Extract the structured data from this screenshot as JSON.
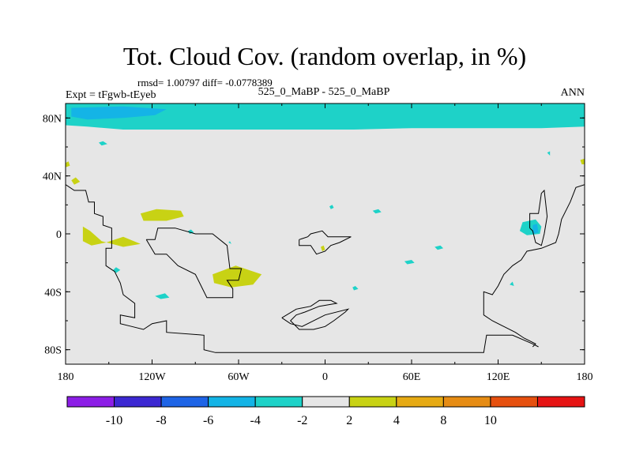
{
  "chart_data": {
    "type": "heatmap",
    "title": "Tot. Cloud Cov. (random overlap, in %)",
    "stats_line": "rmsd= 1.00797 diff= -0.0778389",
    "left_label": "Expt = tFgwb-tEyeb",
    "center_label": "525_0_MaBP - 525_0_MaBP",
    "right_label": "ANN",
    "x_axis": {
      "range": [
        -180,
        180
      ],
      "ticks": [
        {
          "value": -180,
          "label": "180"
        },
        {
          "value": -120,
          "label": "120W"
        },
        {
          "value": -60,
          "label": "60W"
        },
        {
          "value": 0,
          "label": "0"
        },
        {
          "value": 60,
          "label": "60E"
        },
        {
          "value": 120,
          "label": "120E"
        },
        {
          "value": 180,
          "label": "180"
        }
      ]
    },
    "y_axis": {
      "range": [
        -90,
        90
      ],
      "ticks": [
        {
          "value": 80,
          "label": "80N"
        },
        {
          "value": 40,
          "label": "40N"
        },
        {
          "value": 0,
          "label": "0"
        },
        {
          "value": -40,
          "label": "40S"
        },
        {
          "value": -80,
          "label": "80S"
        }
      ]
    },
    "colorbar": {
      "colors": [
        "#8c1ee6",
        "#3c28d2",
        "#1e64e6",
        "#14b4e6",
        "#1ed2c8",
        "#e6e6e6",
        "#c8d214",
        "#e6aa14",
        "#e68c14",
        "#e6500f",
        "#e61414"
      ],
      "labels": [
        "-10",
        "-8",
        "-6",
        "-4",
        "-2",
        "2",
        "4",
        "8",
        "10"
      ]
    },
    "anomaly_regions": [
      {
        "name": "arctic-band",
        "level": "-2",
        "color": "#1ed2c8",
        "points": [
          [
            -180,
            90
          ],
          [
            180,
            90
          ],
          [
            180,
            74
          ],
          [
            150,
            73
          ],
          [
            100,
            73
          ],
          [
            60,
            73
          ],
          [
            20,
            72
          ],
          [
            -20,
            72
          ],
          [
            -60,
            72
          ],
          [
            -100,
            72
          ],
          [
            -140,
            72
          ],
          [
            -165,
            74
          ],
          [
            -180,
            75
          ]
        ]
      },
      {
        "name": "arctic-core",
        "level": "-4",
        "color": "#14b4e6",
        "points": [
          [
            -176,
            87
          ],
          [
            -140,
            88
          ],
          [
            -110,
            86
          ],
          [
            -118,
            82
          ],
          [
            -140,
            80
          ],
          [
            -165,
            79
          ],
          [
            -176,
            81
          ]
        ]
      },
      {
        "name": "mid-pacific",
        "level": "2",
        "color": "#c8d214",
        "points": [
          [
            -128,
            14
          ],
          [
            -117,
            17
          ],
          [
            -100,
            16
          ],
          [
            -98,
            12
          ],
          [
            -110,
            9
          ],
          [
            -126,
            9
          ]
        ]
      },
      {
        "name": "equatorial-pacific-east",
        "level": "2",
        "color": "#c8d214",
        "points": [
          [
            -168,
            5
          ],
          [
            -163,
            2
          ],
          [
            -155,
            -5
          ],
          [
            -140,
            -9
          ],
          [
            -128,
            -7
          ],
          [
            -140,
            -2
          ],
          [
            -152,
            -6
          ],
          [
            -162,
            -8
          ],
          [
            -168,
            -5
          ]
        ]
      },
      {
        "name": "south-atlantic",
        "level": "2",
        "color": "#c8d214",
        "points": [
          [
            -78,
            -28
          ],
          [
            -62,
            -22
          ],
          [
            -44,
            -28
          ],
          [
            -50,
            -35
          ],
          [
            -65,
            -37
          ],
          [
            -77,
            -34
          ]
        ]
      },
      {
        "name": "west-pacific-cyan",
        "level": "-2",
        "color": "#1ed2c8",
        "points": [
          [
            137,
            8
          ],
          [
            146,
            10
          ],
          [
            150,
            5
          ],
          [
            149,
            0
          ],
          [
            140,
            -1
          ],
          [
            135,
            2
          ]
        ]
      },
      {
        "name": "west-pacific-blue",
        "level": "-4",
        "color": "#14b4e6",
        "points": [
          [
            144,
            6
          ],
          [
            147,
            7
          ],
          [
            148,
            1
          ],
          [
            144,
            0
          ]
        ]
      },
      {
        "name": "high-lat-nw",
        "level": "2",
        "color": "#c8d214",
        "points": [
          [
            -180,
            49
          ],
          [
            -178,
            50
          ],
          [
            -177,
            47
          ],
          [
            -180,
            46
          ]
        ]
      },
      {
        "name": "high-lat-ne",
        "level": "2",
        "color": "#c8d214",
        "points": [
          [
            180,
            52
          ],
          [
            177,
            51
          ],
          [
            178,
            48
          ],
          [
            180,
            48
          ]
        ]
      },
      {
        "name": "pacific-sw-dot",
        "level": "2",
        "color": "#c8d214",
        "points": [
          [
            -176,
            37
          ],
          [
            -173,
            39
          ],
          [
            -170,
            36
          ],
          [
            -174,
            34
          ]
        ]
      },
      {
        "name": "dot-1",
        "level": "-2",
        "color": "#1ed2c8",
        "points": [
          [
            -157,
            63
          ],
          [
            -154,
            64
          ],
          [
            -151,
            62
          ],
          [
            -155,
            61
          ]
        ]
      },
      {
        "name": "dot-2",
        "level": "-2",
        "color": "#1ed2c8",
        "points": [
          [
            -95,
            2
          ],
          [
            -93,
            3
          ],
          [
            -91,
            1
          ],
          [
            -94,
            0
          ]
        ]
      },
      {
        "name": "dot-3",
        "level": "-2",
        "color": "#1ed2c8",
        "points": [
          [
            -147,
            -25
          ],
          [
            -145,
            -23
          ],
          [
            -142,
            -25
          ],
          [
            -145,
            -27
          ]
        ]
      },
      {
        "name": "dot-4",
        "level": "-2",
        "color": "#1ed2c8",
        "points": [
          [
            -118,
            -43
          ],
          [
            -111,
            -41
          ],
          [
            -108,
            -44
          ],
          [
            -114,
            -45
          ]
        ]
      },
      {
        "name": "dot-5",
        "level": "-2",
        "color": "#1ed2c8",
        "points": [
          [
            -67,
            -6
          ],
          [
            -66,
            -5
          ],
          [
            -65,
            -7
          ]
        ]
      },
      {
        "name": "dot-6",
        "level": "-2",
        "color": "#1ed2c8",
        "points": [
          [
            3,
            19
          ],
          [
            5,
            20
          ],
          [
            6,
            18
          ],
          [
            4,
            17
          ]
        ]
      },
      {
        "name": "dot-7",
        "level": "-2",
        "color": "#1ed2c8",
        "points": [
          [
            33,
            16
          ],
          [
            37,
            17
          ],
          [
            39,
            15
          ],
          [
            35,
            14
          ]
        ]
      },
      {
        "name": "dot-8",
        "level": "-2",
        "color": "#1ed2c8",
        "points": [
          [
            55,
            -19
          ],
          [
            60,
            -18
          ],
          [
            62,
            -20
          ],
          [
            57,
            -21
          ]
        ]
      },
      {
        "name": "dot-9",
        "level": "-2",
        "color": "#1ed2c8",
        "points": [
          [
            76,
            -9
          ],
          [
            80,
            -8
          ],
          [
            82,
            -10
          ],
          [
            78,
            -11
          ]
        ]
      },
      {
        "name": "dot-10",
        "level": "-2",
        "color": "#1ed2c8",
        "points": [
          [
            19,
            -37
          ],
          [
            21,
            -36
          ],
          [
            23,
            -38
          ],
          [
            20,
            -39
          ]
        ]
      },
      {
        "name": "dot-11",
        "level": "-2",
        "color": "#1ed2c8",
        "points": [
          [
            128,
            -35
          ],
          [
            130,
            -33
          ],
          [
            131,
            -36
          ]
        ]
      },
      {
        "name": "dot-12",
        "level": "-2",
        "color": "#1ed2c8",
        "points": [
          [
            154,
            56
          ],
          [
            156,
            57
          ],
          [
            156,
            54
          ]
        ]
      },
      {
        "name": "dot-13",
        "level": "2",
        "color": "#c8d214",
        "points": [
          [
            -3,
            -9
          ],
          [
            -1,
            -8
          ],
          [
            0,
            -11
          ],
          [
            -2,
            -12
          ]
        ]
      }
    ],
    "coastlines": [
      {
        "name": "americas-west",
        "points": [
          [
            -180,
            34
          ],
          [
            -174,
            30
          ],
          [
            -166,
            30
          ],
          [
            -164,
            22
          ],
          [
            -160,
            22
          ],
          [
            -160,
            14
          ],
          [
            -154,
            12
          ],
          [
            -154,
            6
          ],
          [
            -148,
            4
          ],
          [
            -148,
            -10
          ],
          [
            -152,
            -10
          ],
          [
            -152,
            -22
          ],
          [
            -146,
            -26
          ],
          [
            -142,
            -34
          ],
          [
            -140,
            -42
          ],
          [
            -132,
            -48
          ],
          [
            -132,
            -58
          ],
          [
            -142,
            -56
          ],
          [
            -142,
            -62
          ],
          [
            -134,
            -64
          ],
          [
            -126,
            -66
          ],
          [
            -120,
            -62
          ],
          [
            -110,
            -60
          ],
          [
            -110,
            -68
          ],
          [
            -84,
            -70
          ],
          [
            -84,
            -80
          ],
          [
            -76,
            -82
          ],
          [
            -30,
            -82
          ],
          [
            20,
            -82
          ],
          [
            110,
            -82
          ],
          [
            112,
            -70
          ],
          [
            130,
            -70
          ],
          [
            144,
            -76
          ],
          [
            148,
            -78
          ]
        ]
      },
      {
        "name": "americas-inner",
        "points": [
          [
            -124,
            -4
          ],
          [
            -118,
            -4
          ],
          [
            -116,
            4
          ],
          [
            -104,
            4
          ],
          [
            -90,
            0
          ],
          [
            -78,
            0
          ],
          [
            -68,
            -8
          ],
          [
            -66,
            -24
          ],
          [
            -58,
            -24
          ],
          [
            -60,
            -32
          ],
          [
            -68,
            -32
          ],
          [
            -64,
            -38
          ],
          [
            -64,
            -44
          ],
          [
            -82,
            -44
          ],
          [
            -86,
            -36
          ],
          [
            -90,
            -28
          ],
          [
            -102,
            -22
          ],
          [
            -110,
            -14
          ],
          [
            -118,
            -14
          ],
          [
            -124,
            -4
          ]
        ]
      },
      {
        "name": "island-1",
        "points": [
          [
            -18,
            -4
          ],
          [
            -12,
            -2
          ],
          [
            -10,
            0
          ],
          [
            -2,
            2
          ],
          [
            2,
            -2
          ],
          [
            18,
            -2
          ],
          [
            10,
            -6
          ],
          [
            4,
            -8
          ],
          [
            0,
            -12
          ],
          [
            -6,
            -14
          ],
          [
            -10,
            -8
          ],
          [
            -18,
            -8
          ],
          [
            -18,
            -4
          ]
        ]
      },
      {
        "name": "island-2",
        "points": [
          [
            -30,
            -58
          ],
          [
            -20,
            -52
          ],
          [
            -10,
            -50
          ],
          [
            -4,
            -46
          ],
          [
            4,
            -46
          ],
          [
            8,
            -48
          ],
          [
            -4,
            -50
          ],
          [
            -14,
            -54
          ],
          [
            -20,
            -56
          ],
          [
            -24,
            -60
          ],
          [
            -18,
            -66
          ],
          [
            -8,
            -66
          ],
          [
            0,
            -64
          ],
          [
            6,
            -60
          ],
          [
            14,
            -54
          ],
          [
            16,
            -52
          ],
          [
            0,
            -56
          ],
          [
            -16,
            -64
          ],
          [
            -24,
            -62
          ],
          [
            -30,
            -58
          ]
        ]
      },
      {
        "name": "asia-east",
        "points": [
          [
            180,
            34
          ],
          [
            174,
            32
          ],
          [
            170,
            22
          ],
          [
            164,
            10
          ],
          [
            162,
            0
          ],
          [
            160,
            -6
          ],
          [
            150,
            -10
          ],
          [
            140,
            -12
          ],
          [
            136,
            -18
          ],
          [
            130,
            -22
          ],
          [
            124,
            -28
          ],
          [
            120,
            -36
          ],
          [
            116,
            -42
          ],
          [
            110,
            -40
          ],
          [
            110,
            -56
          ],
          [
            116,
            -60
          ],
          [
            124,
            -64
          ],
          [
            132,
            -68
          ],
          [
            138,
            -72
          ],
          [
            146,
            -76
          ],
          [
            144,
            -78
          ]
        ]
      },
      {
        "name": "asia-spike",
        "points": [
          [
            142,
            4
          ],
          [
            142,
            14
          ],
          [
            148,
            14
          ],
          [
            150,
            28
          ],
          [
            152,
            30
          ],
          [
            154,
            12
          ],
          [
            152,
            0
          ],
          [
            150,
            -8
          ],
          [
            146,
            -6
          ],
          [
            144,
            2
          ],
          [
            142,
            4
          ]
        ]
      }
    ]
  }
}
